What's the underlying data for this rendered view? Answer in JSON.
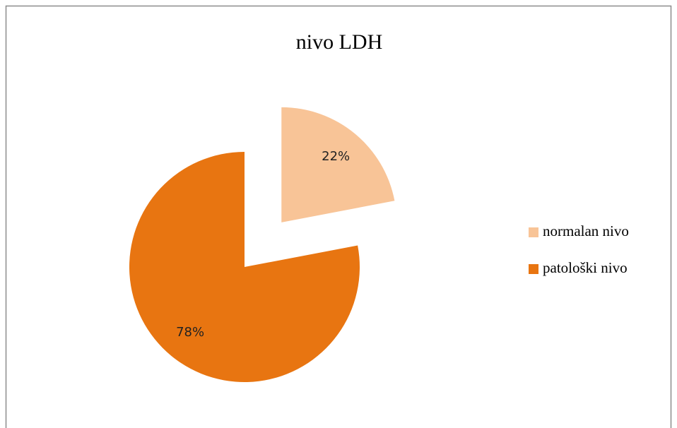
{
  "chart_data": {
    "type": "pie",
    "title": "nivo LDH",
    "categories": [
      "normalan nivo",
      "patološki nivo"
    ],
    "values": [
      22,
      78
    ],
    "value_labels": [
      "22%",
      "78%"
    ],
    "colors": [
      "#f8c497",
      "#e87511"
    ],
    "legend": "right"
  }
}
